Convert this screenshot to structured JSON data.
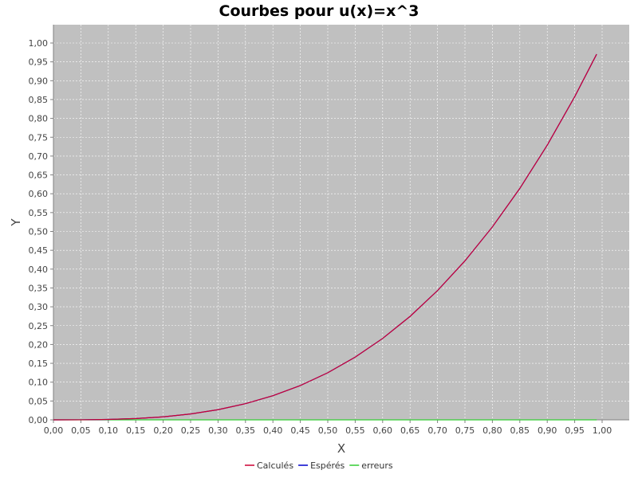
{
  "chart_data": {
    "type": "line",
    "title": "Courbes pour u(x)=x^3",
    "xlabel": "X",
    "ylabel": "Y",
    "xlim": [
      0.0,
      1.0
    ],
    "ylim": [
      0.0,
      1.0
    ],
    "x_ticks": [
      "0,00",
      "0,05",
      "0,10",
      "0,15",
      "0,20",
      "0,25",
      "0,30",
      "0,35",
      "0,40",
      "0,45",
      "0,50",
      "0,55",
      "0,60",
      "0,65",
      "0,70",
      "0,75",
      "0,80",
      "0,85",
      "0,90",
      "0,95",
      "1,00"
    ],
    "y_ticks": [
      "0,00",
      "0,05",
      "0,10",
      "0,15",
      "0,20",
      "0,25",
      "0,30",
      "0,35",
      "0,40",
      "0,45",
      "0,50",
      "0,55",
      "0,60",
      "0,65",
      "0,70",
      "0,75",
      "0,80",
      "0,85",
      "0,90",
      "0,95",
      "1,00"
    ],
    "grid": true,
    "legend_position": "bottom",
    "plot_background": "#c0c0c0",
    "x": [
      0.0,
      0.05,
      0.1,
      0.15,
      0.2,
      0.25,
      0.3,
      0.35,
      0.4,
      0.45,
      0.5,
      0.55,
      0.6,
      0.65,
      0.7,
      0.75,
      0.8,
      0.85,
      0.9,
      0.95,
      0.99
    ],
    "series": [
      {
        "name": "Calculés",
        "color": "#cc0033",
        "values": [
          0.0,
          0.0001,
          0.001,
          0.0034,
          0.008,
          0.0156,
          0.027,
          0.0429,
          0.064,
          0.0911,
          0.125,
          0.1664,
          0.216,
          0.2746,
          0.343,
          0.4219,
          0.512,
          0.6141,
          0.729,
          0.8574,
          0.9703
        ]
      },
      {
        "name": "Espérés",
        "color": "#0000cc",
        "values": [
          0.0,
          0.0001,
          0.001,
          0.0034,
          0.008,
          0.0156,
          0.027,
          0.0429,
          0.064,
          0.0911,
          0.125,
          0.1664,
          0.216,
          0.2746,
          0.343,
          0.4219,
          0.512,
          0.6141,
          0.729,
          0.8574,
          0.9703
        ]
      },
      {
        "name": "erreurs",
        "color": "#33cc33",
        "values": [
          0.0,
          0.0,
          0.0,
          0.0,
          0.0,
          0.0,
          0.0,
          0.0,
          0.0,
          0.0,
          0.0,
          0.0,
          0.0,
          0.0,
          0.0,
          0.0,
          0.0,
          0.0,
          0.0,
          0.0,
          0.0
        ]
      }
    ]
  }
}
